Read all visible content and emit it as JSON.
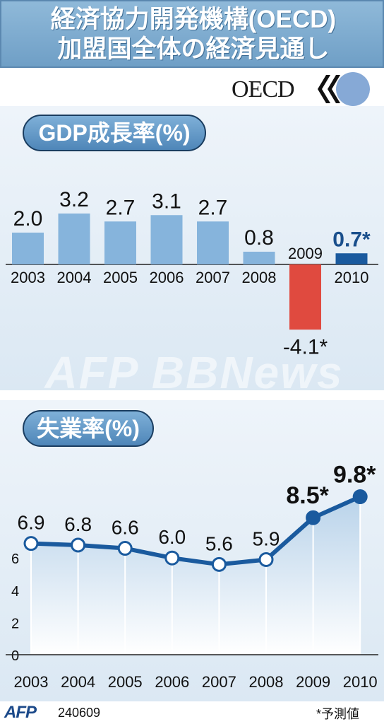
{
  "title": {
    "line1": "経済協力開発機構(OECD)",
    "line2": "加盟国全体の経済見通し"
  },
  "logo": {
    "text": "OECD",
    "icon": "oecd-logo-icon"
  },
  "chart_data": [
    {
      "type": "bar",
      "title": "GDP成長率(%)",
      "categories": [
        "2003",
        "2004",
        "2005",
        "2006",
        "2007",
        "2008",
        "2009",
        "2010"
      ],
      "values": [
        2.0,
        3.2,
        2.7,
        3.1,
        2.7,
        0.8,
        -4.1,
        0.7
      ],
      "value_labels": [
        "2.0",
        "3.2",
        "2.7",
        "3.1",
        "2.7",
        "0.8",
        "-4.1*",
        "0.7*"
      ],
      "colors": [
        "#86b4dc",
        "#86b4dc",
        "#86b4dc",
        "#86b4dc",
        "#86b4dc",
        "#86b4dc",
        "#e04a3f",
        "#1a5a9e"
      ],
      "grid": false
    },
    {
      "type": "line",
      "title": "失業率(%)",
      "x": [
        "2003",
        "2004",
        "2005",
        "2006",
        "2007",
        "2008",
        "2009",
        "2010"
      ],
      "values": [
        6.9,
        6.8,
        6.6,
        6.0,
        5.6,
        5.9,
        8.5,
        9.8
      ],
      "value_labels": [
        "6.9",
        "6.8",
        "6.6",
        "6.0",
        "5.6",
        "5.9",
        "8.5*",
        "9.8*"
      ],
      "y_ticks": [
        "0",
        "2",
        "4",
        "6"
      ],
      "ylim": [
        0,
        10
      ],
      "grid": false
    }
  ],
  "watermark": "AFP BBNews",
  "footer": {
    "agency": "AFP",
    "date_code": "240609",
    "footnote": "*予測値"
  },
  "colors": {
    "banner": "#7aa8cf",
    "bar": "#86b4dc",
    "negative_bar": "#e04a3f",
    "forecast_bar": "#1a5a9e",
    "line": "#1a5a9e"
  }
}
